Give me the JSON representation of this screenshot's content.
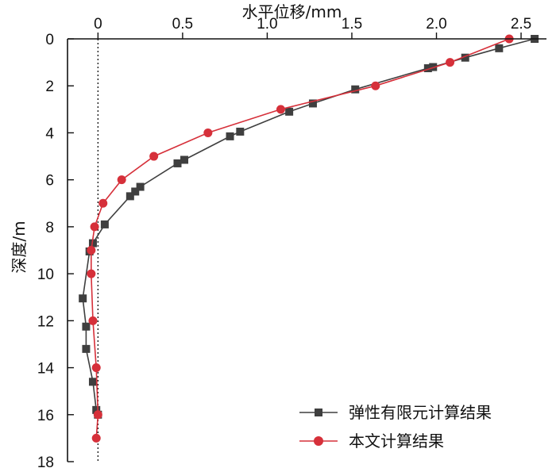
{
  "chart_data": {
    "type": "line",
    "xlabel": "水平位移/mm",
    "ylabel": "深度/m",
    "xlim": [
      -0.18,
      2.65
    ],
    "ylim": [
      0,
      18
    ],
    "x_axis_position": "top",
    "y_inverted": true,
    "grid": false,
    "legend_position": "bottom-right",
    "x_ticks": [
      {
        "value": 0,
        "label": "0"
      },
      {
        "value": 0.5,
        "label": "0.5"
      },
      {
        "value": 1.0,
        "label": "1.0"
      },
      {
        "value": 1.5,
        "label": "1.5"
      },
      {
        "value": 2.0,
        "label": "2.0"
      },
      {
        "value": 2.5,
        "label": "2.5"
      }
    ],
    "y_ticks": [
      {
        "value": 0,
        "label": "0"
      },
      {
        "value": 2,
        "label": "2"
      },
      {
        "value": 4,
        "label": "4"
      },
      {
        "value": 6,
        "label": "6"
      },
      {
        "value": 8,
        "label": "8"
      },
      {
        "value": 10,
        "label": "10"
      },
      {
        "value": 12,
        "label": "12"
      },
      {
        "value": 14,
        "label": "14"
      },
      {
        "value": 16,
        "label": "16"
      },
      {
        "value": 18,
        "label": "18"
      }
    ],
    "reference_line": {
      "x": 0,
      "style": "dotted"
    },
    "series": [
      {
        "name": "弹性有限元计算结果",
        "color": "#3f3f3f",
        "marker": "square",
        "points": [
          {
            "x": 2.58,
            "y": 0.0
          },
          {
            "x": 2.37,
            "y": 0.4
          },
          {
            "x": 2.17,
            "y": 0.8
          },
          {
            "x": 1.98,
            "y": 1.2
          },
          {
            "x": 1.95,
            "y": 1.25
          },
          {
            "x": 1.52,
            "y": 2.15
          },
          {
            "x": 1.27,
            "y": 2.75
          },
          {
            "x": 1.13,
            "y": 3.1
          },
          {
            "x": 0.84,
            "y": 3.95
          },
          {
            "x": 0.78,
            "y": 4.15
          },
          {
            "x": 0.51,
            "y": 5.15
          },
          {
            "x": 0.47,
            "y": 5.3
          },
          {
            "x": 0.25,
            "y": 6.3
          },
          {
            "x": 0.22,
            "y": 6.5
          },
          {
            "x": 0.19,
            "y": 6.7
          },
          {
            "x": 0.04,
            "y": 7.9
          },
          {
            "x": -0.03,
            "y": 8.7
          },
          {
            "x": -0.05,
            "y": 9.05
          },
          {
            "x": -0.09,
            "y": 11.05
          },
          {
            "x": -0.07,
            "y": 12.25
          },
          {
            "x": -0.07,
            "y": 13.2
          },
          {
            "x": -0.03,
            "y": 14.6
          },
          {
            "x": -0.01,
            "y": 15.8
          },
          {
            "x": 0.0,
            "y": 16.0
          }
        ]
      },
      {
        "name": "本文计算结果",
        "color": "#d6303a",
        "marker": "circle",
        "points": [
          {
            "x": 2.43,
            "y": 0.0
          },
          {
            "x": 2.08,
            "y": 1.0
          },
          {
            "x": 1.64,
            "y": 2.0
          },
          {
            "x": 1.08,
            "y": 3.0
          },
          {
            "x": 0.65,
            "y": 4.0
          },
          {
            "x": 0.33,
            "y": 5.0
          },
          {
            "x": 0.14,
            "y": 6.0
          },
          {
            "x": 0.03,
            "y": 7.0
          },
          {
            "x": -0.02,
            "y": 8.0
          },
          {
            "x": -0.04,
            "y": 9.0
          },
          {
            "x": -0.04,
            "y": 10.0
          },
          {
            "x": -0.03,
            "y": 12.0
          },
          {
            "x": -0.01,
            "y": 14.0
          },
          {
            "x": 0.0,
            "y": 16.0
          },
          {
            "x": -0.01,
            "y": 17.0
          }
        ]
      }
    ]
  }
}
